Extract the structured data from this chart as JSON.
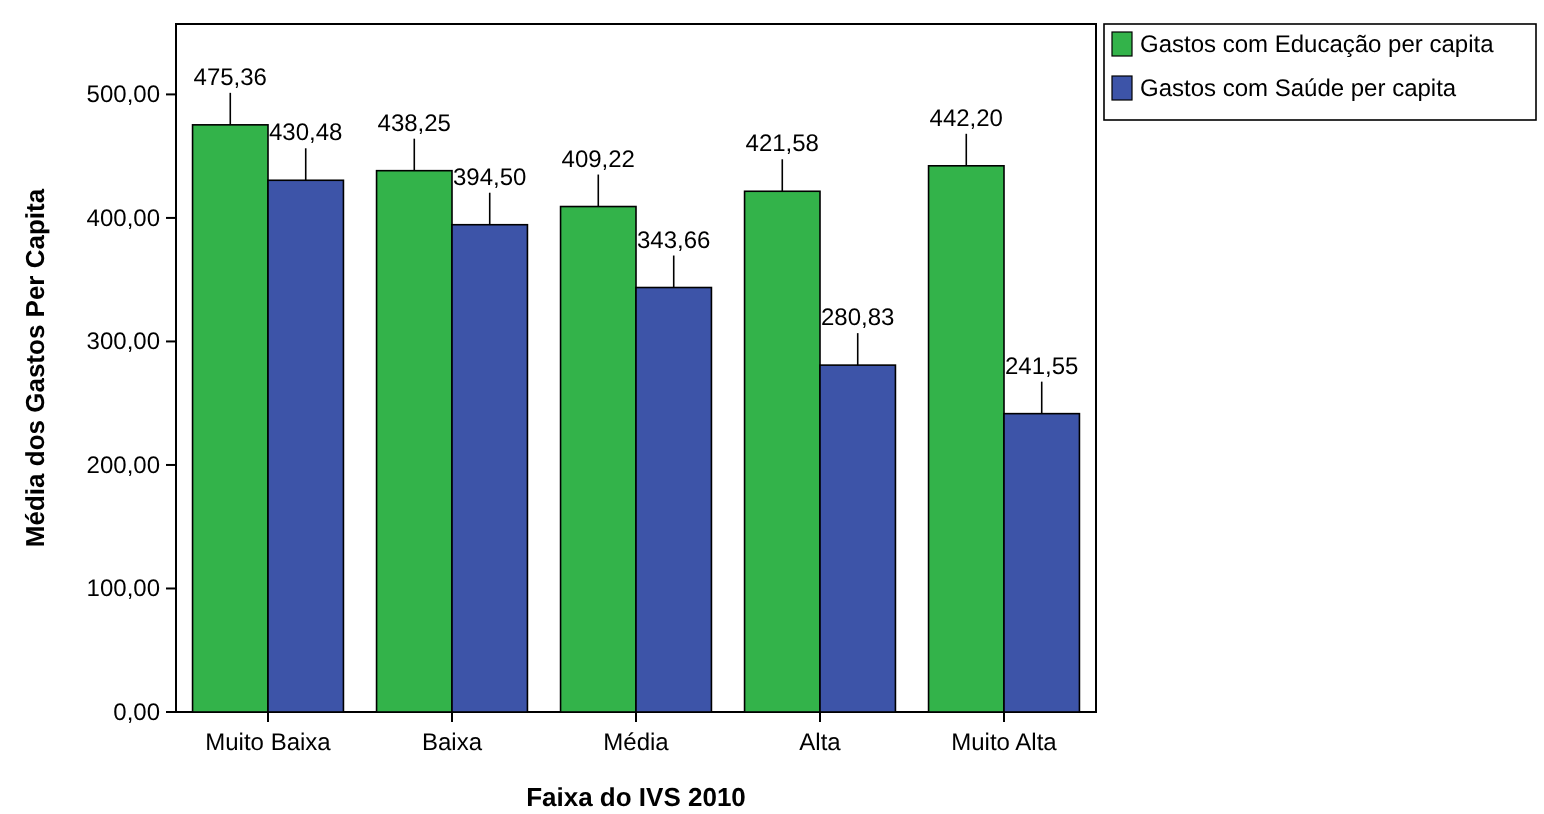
{
  "chart_data": {
    "type": "bar",
    "xlabel": "Faixa do IVS 2010",
    "ylabel": "Média dos Gastos Per Capita",
    "categories": [
      "Muito Baixa",
      "Baixa",
      "Média",
      "Alta",
      "Muito Alta"
    ],
    "series": [
      {
        "name": "Gastos com Educação per capita",
        "color": "#33b34a",
        "values": [
          475.36,
          438.25,
          409.22,
          421.58,
          442.2
        ],
        "value_labels": [
          "475,36",
          "438,25",
          "409,22",
          "421,58",
          "442,20"
        ]
      },
      {
        "name": "Gastos com Saúde per capita",
        "color": "#3d54a8",
        "values": [
          430.48,
          394.5,
          343.66,
          280.83,
          241.55
        ],
        "value_labels": [
          "430,48",
          "394,50",
          "343,66",
          "280,83",
          "241,55"
        ]
      }
    ],
    "ylim": [
      0,
      557
    ],
    "yticks": [
      {
        "value": 0,
        "label": "0,00"
      },
      {
        "value": 100,
        "label": "100,00"
      },
      {
        "value": 200,
        "label": "200,00"
      },
      {
        "value": 300,
        "label": "300,00"
      },
      {
        "value": 400,
        "label": "400,00"
      },
      {
        "value": 500,
        "label": "500,00"
      }
    ],
    "grid": false,
    "legend": "top right"
  }
}
